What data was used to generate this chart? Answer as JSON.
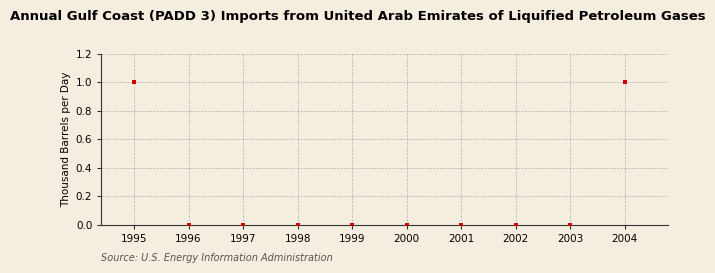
{
  "title": "Annual Gulf Coast (PADD 3) Imports from United Arab Emirates of Liquified Petroleum Gases",
  "ylabel": "Thousand Barrels per Day",
  "source": "Source: U.S. Energy Information Administration",
  "years": [
    1995,
    1996,
    1997,
    1998,
    1999,
    2000,
    2001,
    2002,
    2003,
    2004
  ],
  "values": [
    1.0,
    0.0,
    0.0,
    0.0,
    0.0,
    0.0,
    0.0,
    0.0,
    0.0,
    1.0
  ],
  "ylim": [
    0.0,
    1.2
  ],
  "yticks": [
    0.0,
    0.2,
    0.4,
    0.6,
    0.8,
    1.0,
    1.2
  ],
  "marker_color": "#cc0000",
  "marker": "s",
  "marker_size": 3,
  "bg_color": "#f5ede0",
  "plot_bg_color": "#f5ede0",
  "grid_color": "#999999",
  "title_fontsize": 9.5,
  "axis_fontsize": 7.5,
  "tick_fontsize": 7.5,
  "source_fontsize": 7
}
